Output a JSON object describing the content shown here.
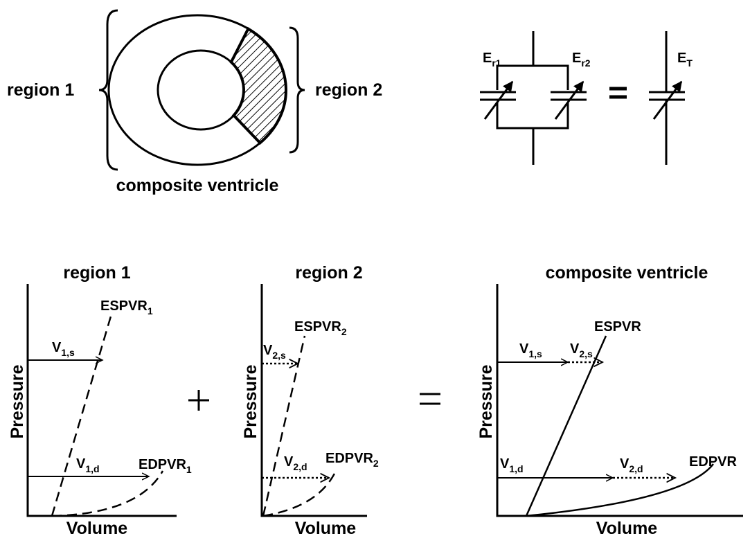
{
  "top": {
    "region1_label": "region 1",
    "region2_label": "region 2",
    "ventricle_label": "composite ventricle",
    "circuit": {
      "er1": {
        "base": "E",
        "sub": "r1"
      },
      "er2": {
        "base": "E",
        "sub": "r2"
      },
      "et": {
        "base": "E",
        "sub": "T"
      }
    }
  },
  "panels": [
    {
      "title": "region 1",
      "y_label": "Pressure",
      "x_label": "Volume",
      "labels": {
        "espvr": {
          "base": "ESPVR",
          "sub": "1"
        },
        "edpvr": {
          "base": "EDPVR",
          "sub": "1"
        },
        "vs": {
          "base": "V",
          "sub": "1,s"
        },
        "vd": {
          "base": "V",
          "sub": "1,d"
        }
      }
    },
    {
      "title": "region 2",
      "y_label": "Pressure",
      "x_label": "Volume",
      "labels": {
        "espvr": {
          "base": "ESPVR",
          "sub": "2"
        },
        "edpvr": {
          "base": "EDPVR",
          "sub": "2"
        },
        "vs": {
          "base": "V",
          "sub": "2,s"
        },
        "vd": {
          "base": "V",
          "sub": "2,d"
        }
      }
    },
    {
      "title": "composite ventricle",
      "y_label": "Pressure",
      "x_label": "Volume",
      "labels": {
        "espvr": {
          "base": "ESPVR"
        },
        "edpvr": {
          "base": "EDPVR"
        },
        "v1s": {
          "base": "V",
          "sub": "1,s"
        },
        "v2s": {
          "base": "V",
          "sub": "2,s"
        },
        "v1d": {
          "base": "V",
          "sub": "1,d"
        },
        "v2d": {
          "base": "V",
          "sub": "2,d"
        }
      }
    }
  ]
}
